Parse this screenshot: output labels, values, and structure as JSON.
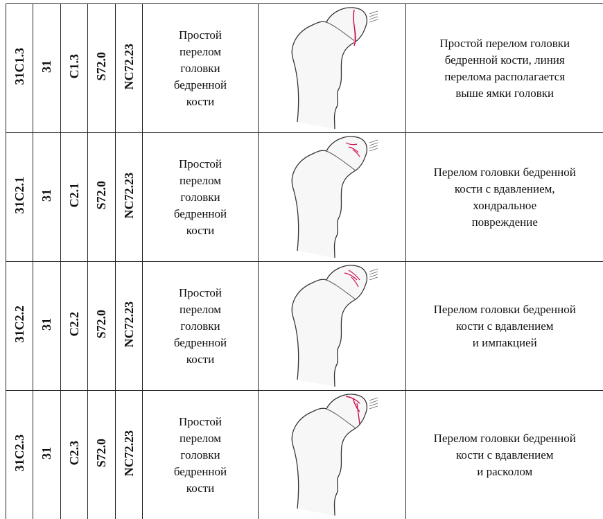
{
  "table": {
    "rows": [
      {
        "code": "31C1.3",
        "segment": "31",
        "type": "C1.3",
        "icd": "S72.0",
        "nc": "NC72.23",
        "name": [
          "Простой",
          "перелом",
          "головки",
          "бедренной",
          "кости"
        ],
        "description": [
          "Простой перелом головки",
          "бедренной кости, линия",
          "перелома располагается",
          "выше ямки головки"
        ]
      },
      {
        "code": "31C2.1",
        "segment": "31",
        "type": "C2.1",
        "icd": "S72.0",
        "nc": "NC72.23",
        "name": [
          "Простой",
          "перелом",
          "головки",
          "бедренной",
          "кости"
        ],
        "description": [
          "Перелом головки бедренной",
          "кости с вдавлением,",
          "хондральное",
          "повреждение"
        ]
      },
      {
        "code": "31C2.2",
        "segment": "31",
        "type": "C2.2",
        "icd": "S72.0",
        "nc": "NC72.23",
        "name": [
          "Простой",
          "перелом",
          "головки",
          "бедренной",
          "кости"
        ],
        "description": [
          "Перелом головки бедренной",
          "кости с вдавлением",
          "и импакцией"
        ]
      },
      {
        "code": "31C2.3",
        "segment": "31",
        "type": "C2.3",
        "icd": "S72.0",
        "nc": "NC72.23",
        "name": [
          "Простой",
          "перелом",
          "головки",
          "бедренной",
          "кости"
        ],
        "description": [
          "Перелом головки бедренной",
          "кости с вдавлением",
          "и расколом"
        ]
      }
    ]
  }
}
